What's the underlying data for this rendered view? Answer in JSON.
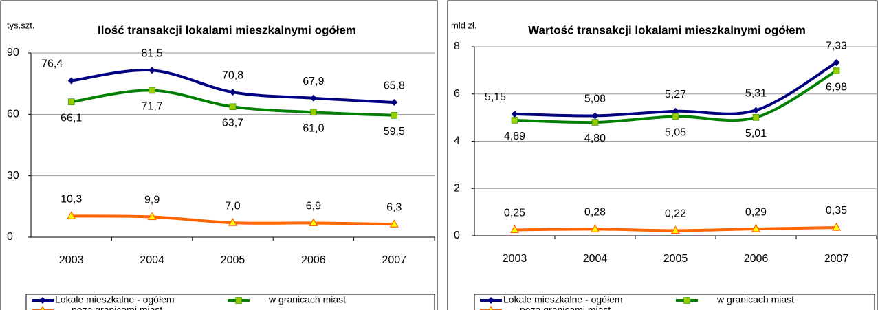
{
  "chart_data": [
    {
      "type": "line",
      "title": "Ilość transakcji lokalami mieszkalnymi ogółem",
      "ylabel": "tys.szt.",
      "categories": [
        "2003",
        "2004",
        "2005",
        "2006",
        "2007"
      ],
      "ylim": [
        0,
        90
      ],
      "yticks": [
        0,
        30,
        60,
        90
      ],
      "grid": true,
      "series": [
        {
          "name": "Lokale mieszkalne - ogółem",
          "color": "#000080",
          "marker": "diamond",
          "values": [
            76.4,
            81.5,
            70.8,
            67.9,
            65.8
          ],
          "value_labels": [
            "76,4",
            "81,5",
            "70,8",
            "67,9",
            "65,8"
          ]
        },
        {
          "name": "w granicach miast",
          "color": "#008000",
          "marker": "square",
          "values": [
            66.1,
            71.7,
            63.7,
            61.0,
            59.5
          ],
          "value_labels": [
            "66,1",
            "71,7",
            "63,7",
            "61,0",
            "59,5"
          ]
        },
        {
          "name": "poza granicami miast",
          "color": "#ff6600",
          "marker": "triangle",
          "values": [
            10.3,
            9.9,
            7.0,
            6.9,
            6.3
          ],
          "value_labels": [
            "10,3",
            "9,9",
            "7,0",
            "6,9",
            "6,3"
          ]
        }
      ]
    },
    {
      "type": "line",
      "title": "Wartość transakcji lokalami mieszkalnymi ogółem",
      "ylabel": "mld zł.",
      "categories": [
        "2003",
        "2004",
        "2005",
        "2006",
        "2007"
      ],
      "ylim": [
        0,
        8
      ],
      "yticks": [
        0,
        2,
        4,
        6,
        8
      ],
      "grid": true,
      "series": [
        {
          "name": "Lokale mieszkalne - ogółem",
          "color": "#000080",
          "marker": "diamond",
          "values": [
            5.15,
            5.08,
            5.27,
            5.31,
            7.33
          ],
          "value_labels": [
            "5,15",
            "5,08",
            "5,27",
            "5,31",
            "7,33"
          ]
        },
        {
          "name": "w granicach miast",
          "color": "#008000",
          "marker": "square",
          "values": [
            4.89,
            4.8,
            5.05,
            5.01,
            6.98
          ],
          "value_labels": [
            "4,89",
            "4,80",
            "5,05",
            "5,01",
            "6,98"
          ]
        },
        {
          "name": "poza granicami miast",
          "color": "#ff6600",
          "marker": "triangle",
          "values": [
            0.25,
            0.28,
            0.22,
            0.29,
            0.35
          ],
          "value_labels": [
            "0,25",
            "0,28",
            "0,22",
            "0,29",
            "0,35"
          ]
        }
      ]
    }
  ]
}
